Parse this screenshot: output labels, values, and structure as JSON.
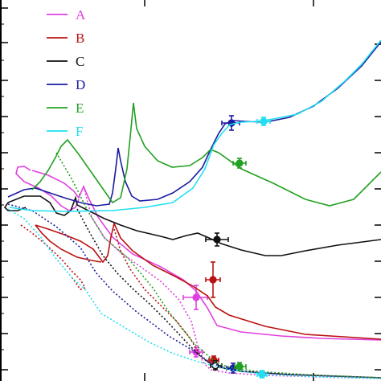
{
  "chart_data": {
    "type": "line",
    "title": "",
    "xlabel": "",
    "ylabel": "",
    "xlim": [
      0,
      474
    ],
    "ylim": [
      0,
      474
    ],
    "grid": false,
    "legend_position": "top-left",
    "series": [
      {
        "name": "A",
        "color": "#e040e0",
        "solid": [
          [
            40,
            212
          ],
          [
            60,
            218
          ],
          [
            80,
            228
          ],
          [
            92,
            238
          ],
          [
            98,
            246
          ],
          [
            104,
            232
          ],
          [
            110,
            246
          ],
          [
            122,
            270
          ],
          [
            140,
            295
          ],
          [
            165,
            316
          ],
          [
            200,
            332
          ],
          [
            228,
            348
          ],
          [
            244,
            362
          ],
          [
            258,
            383
          ],
          [
            270,
            405
          ],
          [
            300,
            413
          ],
          [
            350,
            418
          ],
          [
            400,
            421
          ],
          [
            474,
            423
          ]
        ],
        "loop": [
          [
            38,
            212
          ],
          [
            30,
            207
          ],
          [
            22,
            208
          ],
          [
            20,
            216
          ],
          [
            30,
            226
          ],
          [
            48,
            234
          ],
          [
            64,
            244
          ],
          [
            76,
            256
          ],
          [
            86,
            262
          ],
          [
            94,
            258
          ],
          [
            98,
            248
          ]
        ],
        "dotted": [
          [
            104,
            232
          ],
          [
            114,
            270
          ],
          [
            130,
            296
          ],
          [
            150,
            314
          ],
          [
            175,
            332
          ],
          [
            200,
            350
          ],
          [
            222,
            372
          ],
          [
            238,
            400
          ],
          [
            246,
            430
          ],
          [
            252,
            450
          ],
          [
            262,
            460
          ],
          [
            285,
            464
          ],
          [
            330,
            467
          ],
          [
            400,
            469
          ],
          [
            474,
            471
          ]
        ],
        "marker": {
          "x": 244,
          "y": 370,
          "xerr": [
            228,
            258
          ],
          "yerr": [
            355,
            385
          ],
          "hollow": false
        },
        "marker2": {
          "x": 244,
          "y": 438,
          "xerr": [
            236,
            252
          ],
          "yerr": [
            432,
            444
          ],
          "hollow": false
        }
      },
      {
        "name": "B",
        "color": "#bb1111",
        "solid": [
          [
            44,
            280
          ],
          [
            60,
            285
          ],
          [
            80,
            292
          ],
          [
            100,
            300
          ],
          [
            116,
            310
          ],
          [
            128,
            326
          ],
          [
            134,
            318
          ],
          [
            138,
            295
          ],
          [
            142,
            278
          ],
          [
            150,
            296
          ],
          [
            165,
            312
          ],
          [
            190,
            330
          ],
          [
            220,
            345
          ],
          [
            240,
            356
          ],
          [
            258,
            368
          ],
          [
            268,
            382
          ],
          [
            285,
            392
          ],
          [
            330,
            406
          ],
          [
            380,
            416
          ],
          [
            474,
            422
          ]
        ],
        "loop": [
          [
            44,
            280
          ],
          [
            52,
            290
          ],
          [
            62,
            300
          ],
          [
            76,
            310
          ],
          [
            96,
            320
          ],
          [
            114,
            324
          ],
          [
            126,
            326
          ]
        ],
        "dotted": [
          [
            142,
            285
          ],
          [
            150,
            312
          ],
          [
            162,
            335
          ],
          [
            180,
            360
          ],
          [
            200,
            380
          ],
          [
            220,
            400
          ],
          [
            236,
            420
          ],
          [
            248,
            440
          ],
          [
            258,
            450
          ],
          [
            272,
            457
          ],
          [
            300,
            462
          ],
          [
            360,
            466
          ],
          [
            474,
            470
          ]
        ],
        "dotloop": [
          [
            26,
            280
          ],
          [
            40,
            290
          ],
          [
            58,
            305
          ],
          [
            76,
            322
          ],
          [
            90,
            338
          ],
          [
            100,
            348
          ],
          [
            106,
            358
          ],
          [
            100,
            360
          ],
          [
            90,
            346
          ]
        ],
        "marker": {
          "x": 265,
          "y": 348,
          "xerr": [
            256,
            274
          ],
          "yerr": [
            326,
            370
          ],
          "hollow": false
        },
        "marker2": {
          "x": 266,
          "y": 448,
          "xerr": [
            260,
            272
          ],
          "yerr": [
            443,
            453
          ],
          "hollow": false
        }
      },
      {
        "name": "C",
        "color": "#111111",
        "solid": [
          [
            10,
            252
          ],
          [
            30,
            244
          ],
          [
            50,
            244
          ],
          [
            62,
            252
          ],
          [
            70,
            265
          ],
          [
            80,
            268
          ],
          [
            88,
            262
          ],
          [
            94,
            246
          ],
          [
            96,
            255
          ],
          [
            110,
            262
          ],
          [
            130,
            272
          ],
          [
            150,
            280
          ],
          [
            170,
            287
          ],
          [
            200,
            294
          ],
          [
            215,
            298
          ],
          [
            232,
            293
          ],
          [
            246,
            290
          ],
          [
            260,
            296
          ],
          [
            275,
            303
          ],
          [
            300,
            311
          ],
          [
            330,
            318
          ],
          [
            350,
            318
          ],
          [
            380,
            312
          ],
          [
            420,
            305
          ],
          [
            474,
            298
          ]
        ],
        "loop": [
          [
            10,
            252
          ],
          [
            6,
            258
          ],
          [
            10,
            262
          ],
          [
            22,
            262
          ],
          [
            32,
            258
          ]
        ],
        "dotted": [
          [
            96,
            260
          ],
          [
            112,
            290
          ],
          [
            128,
            318
          ],
          [
            146,
            340
          ],
          [
            166,
            360
          ],
          [
            186,
            378
          ],
          [
            206,
            398
          ],
          [
            222,
            415
          ],
          [
            236,
            430
          ],
          [
            250,
            444
          ],
          [
            264,
            454
          ],
          [
            278,
            458
          ],
          [
            300,
            462
          ],
          [
            360,
            466
          ],
          [
            474,
            470
          ]
        ],
        "marker": {
          "x": 270,
          "y": 298,
          "xerr": [
            256,
            284
          ],
          "yerr": [
            290,
            306
          ],
          "hollow": false
        },
        "marker2": {
          "x": 268,
          "y": 455,
          "xerr": [
            262,
            276
          ],
          "yerr": [
            449,
            460
          ],
          "hollow": true
        }
      },
      {
        "name": "D",
        "color": "#1a1aa0",
        "solid": [
          [
            10,
            245
          ],
          [
            30,
            236
          ],
          [
            44,
            234
          ],
          [
            62,
            240
          ],
          [
            80,
            246
          ],
          [
            100,
            252
          ],
          [
            120,
            256
          ],
          [
            136,
            254
          ],
          [
            140,
            240
          ],
          [
            144,
            210
          ],
          [
            147,
            184
          ],
          [
            150,
            200
          ],
          [
            156,
            226
          ],
          [
            164,
            244
          ],
          [
            174,
            250
          ],
          [
            196,
            248
          ],
          [
            215,
            240
          ],
          [
            236,
            226
          ],
          [
            252,
            208
          ],
          [
            262,
            186
          ],
          [
            272,
            166
          ],
          [
            280,
            154
          ],
          [
            290,
            150
          ],
          [
            305,
            151
          ],
          [
            330,
            152
          ],
          [
            360,
            146
          ],
          [
            390,
            132
          ],
          [
            420,
            110
          ],
          [
            450,
            82
          ],
          [
            474,
            52
          ]
        ],
        "dotted": [
          [
            10,
            254
          ],
          [
            40,
            262
          ],
          [
            70,
            282
          ],
          [
            100,
            308
          ],
          [
            120,
            340
          ],
          [
            140,
            362
          ],
          [
            170,
            388
          ],
          [
            210,
            418
          ],
          [
            240,
            436
          ],
          [
            260,
            450
          ],
          [
            280,
            458
          ],
          [
            300,
            462
          ],
          [
            360,
            466
          ],
          [
            474,
            470
          ]
        ],
        "marker": {
          "x": 288,
          "y": 153,
          "xerr": [
            276,
            298
          ],
          "yerr": [
            144,
            162
          ],
          "hollow": false
        },
        "marker2": {
          "x": 290,
          "y": 458,
          "xerr": [
            282,
            298
          ],
          "yerr": [
            452,
            464
          ],
          "hollow": false
        }
      },
      {
        "name": "E",
        "color": "#22a022",
        "solid": [
          [
            40,
            236
          ],
          [
            50,
            226
          ],
          [
            60,
            212
          ],
          [
            70,
            194
          ],
          [
            76,
            182
          ],
          [
            84,
            174
          ],
          [
            98,
            192
          ],
          [
            112,
            212
          ],
          [
            126,
            232
          ],
          [
            140,
            252
          ],
          [
            150,
            246
          ],
          [
            158,
            210
          ],
          [
            163,
            160
          ],
          [
            166,
            128
          ],
          [
            170,
            160
          ],
          [
            180,
            182
          ],
          [
            196,
            200
          ],
          [
            214,
            208
          ],
          [
            236,
            206
          ],
          [
            252,
            196
          ],
          [
            262,
            186
          ],
          [
            272,
            190
          ],
          [
            300,
            210
          ],
          [
            340,
            228
          ],
          [
            380,
            248
          ],
          [
            410,
            256
          ],
          [
            440,
            248
          ],
          [
            474,
            214
          ]
        ],
        "dotted": [
          [
            70,
            190
          ],
          [
            90,
            224
          ],
          [
            110,
            264
          ],
          [
            130,
            296
          ],
          [
            160,
            322
          ],
          [
            190,
            358
          ],
          [
            210,
            388
          ],
          [
            226,
            408
          ],
          [
            242,
            428
          ],
          [
            256,
            440
          ],
          [
            270,
            452
          ],
          [
            290,
            458
          ],
          [
            320,
            462
          ],
          [
            380,
            466
          ],
          [
            474,
            470
          ]
        ],
        "marker": {
          "x": 298,
          "y": 203,
          "xerr": [
            290,
            306
          ],
          "yerr": [
            197,
            209
          ],
          "hollow": false
        },
        "marker2": {
          "x": 298,
          "y": 456,
          "xerr": [
            292,
            306
          ],
          "yerr": [
            451,
            461
          ],
          "hollow": false
        }
      },
      {
        "name": "F",
        "color": "#20e0f0",
        "solid": [
          [
            12,
            258
          ],
          [
            40,
            262
          ],
          [
            80,
            263
          ],
          [
            140,
            262
          ],
          [
            180,
            258
          ],
          [
            215,
            252
          ],
          [
            240,
            234
          ],
          [
            255,
            210
          ],
          [
            266,
            180
          ],
          [
            276,
            166
          ],
          [
            286,
            155
          ],
          [
            300,
            152
          ],
          [
            320,
            151
          ],
          [
            340,
            148
          ],
          [
            370,
            142
          ],
          [
            400,
            126
          ],
          [
            430,
            100
          ],
          [
            450,
            80
          ],
          [
            474,
            50
          ]
        ],
        "dotted": [
          [
            10,
            260
          ],
          [
            30,
            272
          ],
          [
            50,
            294
          ],
          [
            70,
            322
          ],
          [
            90,
            346
          ],
          [
            106,
            360
          ],
          [
            126,
            390
          ],
          [
            156,
            408
          ],
          [
            186,
            426
          ],
          [
            216,
            440
          ],
          [
            246,
            450
          ],
          [
            286,
            460
          ],
          [
            330,
            466
          ],
          [
            400,
            469
          ],
          [
            474,
            471
          ]
        ],
        "marker": {
          "x": 328,
          "y": 151,
          "xerr": [
            320,
            336
          ],
          "yerr": [
            146,
            156
          ],
          "hollow": false
        },
        "marker2": {
          "x": 326,
          "y": 466,
          "xerr": [
            320,
            332
          ],
          "yerr": [
            461,
            470
          ],
          "hollow": false
        }
      }
    ],
    "axes": {
      "left_ticks_major": [
        10,
        53,
        100,
        145,
        190,
        235,
        280,
        325,
        370,
        415,
        460
      ],
      "left_ticks_minor": [
        30,
        75,
        120,
        165,
        210,
        255,
        300,
        345,
        390,
        435
      ],
      "top_ticks": [
        180,
        390
      ],
      "bottom_ticks": [
        180,
        390
      ],
      "right_ticks": [
        55,
        100,
        145,
        190,
        235,
        280,
        325,
        370,
        415,
        460
      ]
    }
  }
}
